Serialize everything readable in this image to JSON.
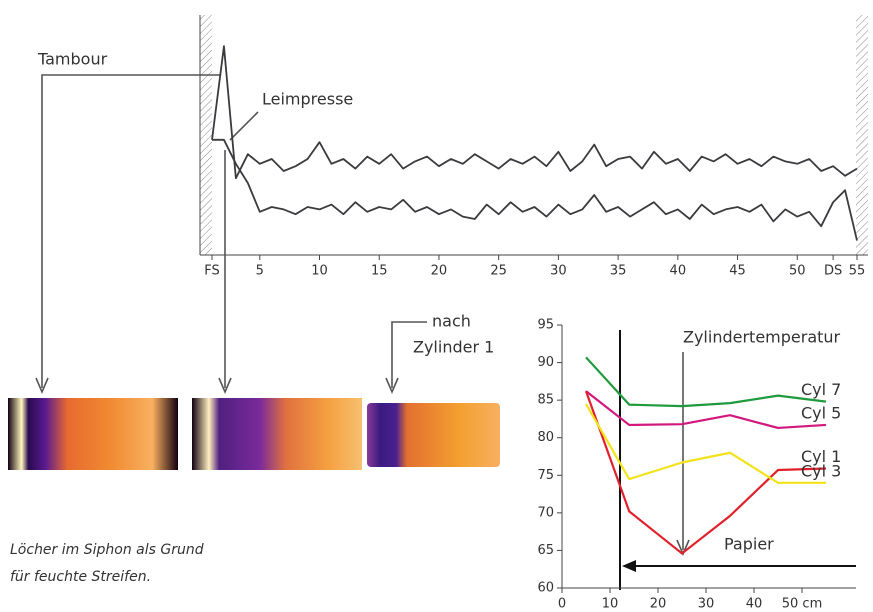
{
  "chart_data": [
    {
      "type": "line",
      "x": [
        1,
        2,
        3,
        4,
        5,
        6,
        7,
        8,
        9,
        10,
        11,
        12,
        13,
        14,
        15,
        16,
        17,
        18,
        19,
        20,
        21,
        22,
        23,
        24,
        25,
        26,
        27,
        28,
        29,
        30,
        31,
        32,
        33,
        34,
        35,
        36,
        37,
        38,
        39,
        40,
        41,
        42,
        43,
        44,
        45,
        46,
        47,
        48,
        49,
        50,
        51,
        52,
        53,
        54,
        55
      ],
      "series": [
        {
          "color": "#3a3a3f",
          "values": [
            48,
            87,
            32,
            42,
            38,
            40,
            35,
            37,
            40,
            47,
            38,
            40,
            36,
            41,
            38,
            42,
            36,
            39,
            41,
            37,
            40,
            38,
            42,
            39,
            36,
            40,
            38,
            41,
            37,
            43,
            35,
            39,
            46,
            37,
            40,
            41,
            36,
            43,
            38,
            40,
            35,
            41,
            39,
            42,
            38,
            40,
            37,
            41,
            39,
            38,
            40,
            35,
            37,
            33,
            36
          ]
        },
        {
          "color": "#3a3a3f",
          "values": [
            48,
            48,
            38,
            30,
            18,
            20,
            19,
            17,
            20,
            19,
            21,
            17,
            22,
            18,
            20,
            19,
            23,
            18,
            20,
            17,
            19,
            16,
            15,
            21,
            17,
            22,
            18,
            20,
            16,
            21,
            17,
            19,
            25,
            18,
            20,
            16,
            19,
            22,
            17,
            19,
            15,
            21,
            17,
            19,
            20,
            18,
            21,
            14,
            19,
            16,
            18,
            12,
            22,
            27,
            6
          ]
        }
      ],
      "xlim": [
        1,
        55
      ],
      "ylim": [
        0,
        100
      ],
      "xticks": [
        {
          "value": 1,
          "label": "FS"
        },
        5,
        10,
        15,
        20,
        25,
        30,
        35,
        40,
        45,
        50,
        {
          "value": 53,
          "label": "DS"
        },
        55
      ],
      "annotations": [
        "Tambour",
        "Leimpresse",
        "nach",
        "Zylinder 1"
      ]
    },
    {
      "type": "line",
      "x": [
        5,
        14,
        25,
        35,
        45,
        55
      ],
      "series": [
        {
          "name": "Cyl 7",
          "color": "#1f9a3c",
          "values": [
            90.7,
            84.4,
            84.2,
            84.6,
            85.6,
            84.8
          ]
        },
        {
          "name": "Cyl 5",
          "color": "#d2187f",
          "values": [
            86.2,
            81.7,
            81.8,
            83.0,
            81.3,
            81.7
          ]
        },
        {
          "name": "Cyl 1",
          "color": "#e0202a",
          "values": [
            86.2,
            70.2,
            64.6,
            69.6,
            75.7,
            75.9
          ]
        },
        {
          "name": "Cyl 3",
          "color": "#f2e31c",
          "values": [
            84.5,
            74.5,
            76.7,
            78.0,
            74.0,
            74.0
          ]
        }
      ],
      "xlim": [
        0,
        60
      ],
      "ylim": [
        60,
        95
      ],
      "xticks": [
        0,
        10,
        20,
        30,
        40,
        {
          "value": 50,
          "label": "50 cm"
        }
      ],
      "yticks": [
        60,
        65,
        70,
        75,
        80,
        85,
        90,
        95
      ],
      "annotations": [
        "Zylindertemperatur",
        "Papier"
      ]
    }
  ],
  "caption": [
    "Löcher im Siphon als Grund",
    "für feuchte Streifen."
  ]
}
